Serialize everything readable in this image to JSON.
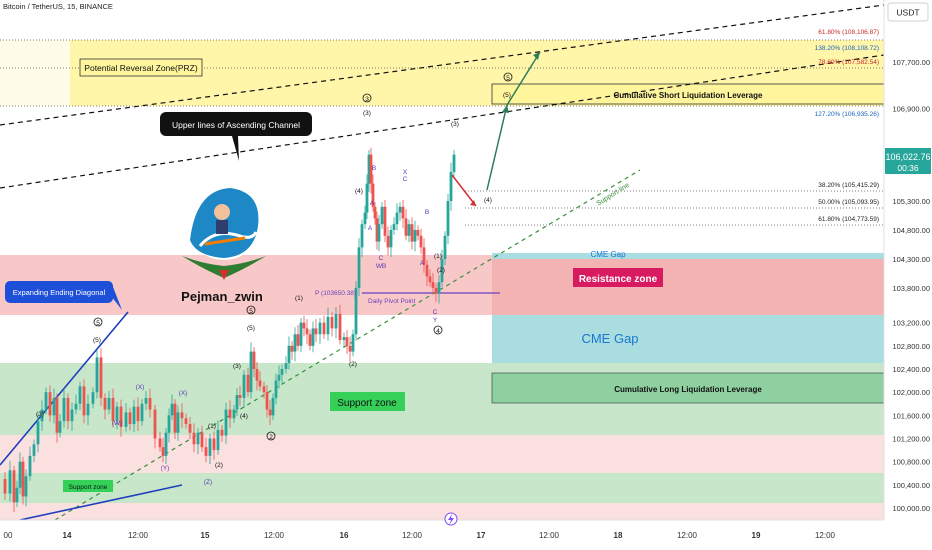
{
  "header": {
    "title": "Bitcoin / TetherUS, 15, BINANCE",
    "currency": "USDT"
  },
  "colors": {
    "up": "#26a69a",
    "down": "#ef5350",
    "prz": "#fff59d",
    "resistance": "#f8c8c8",
    "support": "#c8e6c9",
    "cme": "#a9dde0",
    "support_light": "#e3f2e3",
    "channel": "#111111",
    "support_line": "#388e3c",
    "diagonal": "#1e3fbf",
    "arrow_up": "#2e7d5b",
    "arrow_down": "#d32f2f"
  },
  "price_axis": {
    "ticks": [
      "107,700.00",
      "106,900.00",
      "105,300.00",
      "104,800.00",
      "104,300.00",
      "103,800.00",
      "103,200.00",
      "102,800.00",
      "102,400.00",
      "102,000.00",
      "101,600.00",
      "101,200.00",
      "100,800.00",
      "100,400.00",
      "100,000.00"
    ],
    "current_price": "106,022.76",
    "countdown": "00:36"
  },
  "time_axis": {
    "ticks": [
      "00",
      "14",
      "12:00",
      "15",
      "12:00",
      "16",
      "12:00",
      "17",
      "12:00",
      "18",
      "12:00",
      "19",
      "12:00"
    ]
  },
  "zones": {
    "prz_label": "Potential Reversal Zone(PRZ)",
    "resistance_label": "Resistance zone",
    "cme_gap_label": "CME Gap",
    "cme_gap_small_label": "CME Gap",
    "support_zone_label": "Support zone",
    "support_zone_small_label": "Support zone",
    "short_liq_label": "Cumulative Short Liquidation Leverage",
    "long_liq_label": "Cumulative Long Liquidation Leverage"
  },
  "fib_levels": [
    "61.80% (108,106.87)",
    "138.20% (108,108.72)",
    "78.60% (107,582.54)",
    "127.20% (106,935.26)",
    "38.20% (105,415.29)",
    "50.00% (105,093.95)",
    "61.80% (104,773.59)"
  ],
  "callouts": {
    "channel": "Upper lines of Ascending Channel",
    "diagonal": "Expanding Ending Diagonal",
    "support_line": "Support line",
    "pivot": "P (103650.38)",
    "pivot_name": "Daily Pivot Point"
  },
  "author": {
    "name": "Pejman_zwin"
  },
  "wave_labels": [
    {
      "t": "5",
      "circ": true
    },
    {
      "t": "(5)"
    },
    {
      "t": "(3)"
    },
    {
      "t": "(X)"
    },
    {
      "t": "(W)"
    },
    {
      "t": "(X)"
    },
    {
      "t": "(Y)"
    },
    {
      "t": "(Z)"
    },
    {
      "t": "(1)"
    },
    {
      "t": "2",
      "circ": true
    },
    {
      "t": "(2)"
    },
    {
      "t": "(3)"
    },
    {
      "t": "(4)"
    },
    {
      "t": "5",
      "circ": true
    },
    {
      "t": "(5)"
    },
    {
      "t": "(1)"
    },
    {
      "t": "(2)"
    },
    {
      "t": "3",
      "circ": true
    },
    {
      "t": "(3)"
    },
    {
      "t": "B"
    },
    {
      "t": "A"
    },
    {
      "t": "C"
    },
    {
      "t": "W"
    },
    {
      "t": "B"
    },
    {
      "t": "X"
    },
    {
      "t": "C"
    },
    {
      "t": "A"
    },
    {
      "t": "B"
    },
    {
      "t": "A"
    },
    {
      "t": "(1)"
    },
    {
      "t": "(2)"
    },
    {
      "t": "C"
    },
    {
      "t": "Y"
    },
    {
      "t": "4",
      "circ": true
    },
    {
      "t": "(3)"
    },
    {
      "t": "(4)"
    },
    {
      "t": "5",
      "circ": true
    },
    {
      "t": "(5)"
    },
    {
      "t": "(4)"
    }
  ],
  "chart_data": {
    "type": "candlestick",
    "title": "Bitcoin / TetherUS, 15, BINANCE",
    "y_range": [
      99600,
      108600
    ],
    "x_ticks": [
      "00",
      "14",
      "12:00",
      "15",
      "12:00",
      "16",
      "12:00",
      "17",
      "12:00",
      "18",
      "12:00",
      "19",
      "12:00"
    ],
    "price_path": [
      [
        0,
        100500
      ],
      [
        5,
        100250
      ],
      [
        10,
        100650
      ],
      [
        14,
        100100
      ],
      [
        17,
        100350
      ],
      [
        20,
        100800
      ],
      [
        23,
        100200
      ],
      [
        26,
        100550
      ],
      [
        30,
        100900
      ],
      [
        34,
        101100
      ],
      [
        38,
        101500
      ],
      [
        42,
        101700
      ],
      [
        46,
        102000
      ],
      [
        50,
        101600
      ],
      [
        54,
        101900
      ],
      [
        57,
        101300
      ],
      [
        60,
        101500
      ],
      [
        64,
        101900
      ],
      [
        68,
        101500
      ],
      [
        72,
        101700
      ],
      [
        76,
        101800
      ],
      [
        80,
        102100
      ],
      [
        84,
        101600
      ],
      [
        88,
        101800
      ],
      [
        93,
        102000
      ],
      [
        97,
        102600
      ],
      [
        101,
        101900
      ],
      [
        105,
        101700
      ],
      [
        109,
        101900
      ],
      [
        113,
        101500
      ],
      [
        117,
        101750
      ],
      [
        121,
        101400
      ],
      [
        126,
        101650
      ],
      [
        130,
        101450
      ],
      [
        134,
        101750
      ],
      [
        138,
        101500
      ],
      [
        142,
        101800
      ],
      [
        146,
        101900
      ],
      [
        150,
        101700
      ],
      [
        155,
        101200
      ],
      [
        160,
        101050
      ],
      [
        163,
        100900
      ],
      [
        166,
        101300
      ],
      [
        169,
        101600
      ],
      [
        172,
        101800
      ],
      [
        175,
        101300
      ],
      [
        178,
        101650
      ],
      [
        182,
        101550
      ],
      [
        186,
        101450
      ],
      [
        190,
        101300
      ],
      [
        194,
        101100
      ],
      [
        198,
        101300
      ],
      [
        202,
        101050
      ],
      [
        206,
        100900
      ],
      [
        210,
        101200
      ],
      [
        214,
        101000
      ],
      [
        218,
        101350
      ],
      [
        222,
        101250
      ],
      [
        226,
        101700
      ],
      [
        230,
        101550
      ],
      [
        234,
        101700
      ],
      [
        237,
        101950
      ],
      [
        240,
        101900
      ],
      [
        244,
        102300
      ],
      [
        248,
        102000
      ],
      [
        251,
        102700
      ],
      [
        254,
        102400
      ],
      [
        257,
        102200
      ],
      [
        260,
        102100
      ],
      [
        264,
        102000
      ],
      [
        267,
        101700
      ],
      [
        270,
        101600
      ],
      [
        273,
        101900
      ],
      [
        276,
        102200
      ],
      [
        279,
        102300
      ],
      [
        282,
        102400
      ],
      [
        286,
        102500
      ],
      [
        289,
        102800
      ],
      [
        292,
        102700
      ],
      [
        295,
        103000
      ],
      [
        298,
        102800
      ],
      [
        301,
        103200
      ],
      [
        304,
        103100
      ],
      [
        307,
        103000
      ],
      [
        310,
        102800
      ],
      [
        313,
        103100
      ],
      [
        316,
        103000
      ],
      [
        320,
        103200
      ],
      [
        324,
        103000
      ],
      [
        328,
        103300
      ],
      [
        332,
        103100
      ],
      [
        336,
        103350
      ],
      [
        340,
        102900
      ],
      [
        344,
        102950
      ],
      [
        347,
        102800
      ],
      [
        350,
        102700
      ],
      [
        353,
        103000
      ],
      [
        356,
        103800
      ],
      [
        359,
        104500
      ],
      [
        362,
        104900
      ],
      [
        365,
        105100
      ],
      [
        367,
        105600
      ],
      [
        369,
        106100
      ],
      [
        371,
        105600
      ],
      [
        373,
        105200
      ],
      [
        375,
        105000
      ],
      [
        377,
        104600
      ],
      [
        379,
        104900
      ],
      [
        382,
        105200
      ],
      [
        385,
        104700
      ],
      [
        388,
        104500
      ],
      [
        391,
        104800
      ],
      [
        394,
        104900
      ],
      [
        397,
        105100
      ],
      [
        400,
        105200
      ],
      [
        403,
        105000
      ],
      [
        406,
        104700
      ],
      [
        409,
        104900
      ],
      [
        412,
        104600
      ],
      [
        415,
        104800
      ],
      [
        418,
        104700
      ],
      [
        421,
        104500
      ],
      [
        424,
        104200
      ],
      [
        427,
        104000
      ],
      [
        430,
        103900
      ],
      [
        433,
        103800
      ],
      [
        436,
        103700
      ],
      [
        439,
        103900
      ],
      [
        442,
        104300
      ],
      [
        445,
        104700
      ],
      [
        448,
        105300
      ],
      [
        451,
        105800
      ],
      [
        454,
        106100
      ]
    ],
    "zones": [
      {
        "name": "Potential Reversal Zone(PRZ)",
        "from": 106950,
        "to": 108150
      },
      {
        "name": "Resistance zone",
        "from": 103300,
        "to": 104350
      },
      {
        "name": "CME Gap",
        "from": 102450,
        "to": 103300
      },
      {
        "name": "Support zone",
        "from": 101200,
        "to": 102350
      },
      {
        "name": "Support zone",
        "from": 100350,
        "to": 100900
      }
    ],
    "fib_levels": [
      {
        "ratio": "61.80%",
        "price": 108106.87
      },
      {
        "ratio": "138.20%",
        "price": 108108.72
      },
      {
        "ratio": "78.60%",
        "price": 107582.54
      },
      {
        "ratio": "127.20%",
        "price": 106935.26
      },
      {
        "ratio": "38.20%",
        "price": 105415.29
      },
      {
        "ratio": "50.00%",
        "price": 105093.95
      },
      {
        "ratio": "61.80%",
        "price": 104773.59
      }
    ],
    "pivot": 103650.38,
    "last_price": 106022.76
  }
}
